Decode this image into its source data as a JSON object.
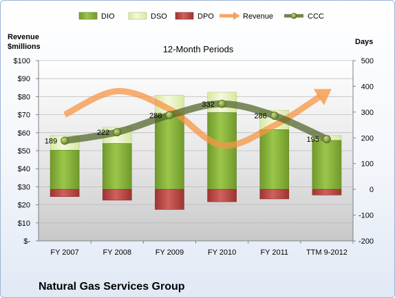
{
  "company": "Natural Gas Services Group",
  "chart_data": {
    "type": "bar",
    "subtitle": "12-Month Periods",
    "left_axis_label_line1": "Revenue",
    "left_axis_label_line2": "$millions",
    "right_axis_label": "Days",
    "categories": [
      "FY 2007",
      "FY 2008",
      "FY 2009",
      "FY 2010",
      "FY 2011",
      "TTM 9-2012"
    ],
    "left_ylim": [
      0,
      100
    ],
    "left_ticks": [
      "$-",
      "$10",
      "$20",
      "$30",
      "$40",
      "$50",
      "$60",
      "$70",
      "$80",
      "$90",
      "$100"
    ],
    "right_ylim": [
      -200,
      500
    ],
    "right_ticks": [
      "-200",
      "-100",
      "0",
      "100",
      "200",
      "300",
      "400",
      "500"
    ],
    "legend_position": "top",
    "series": [
      {
        "name": "DIO",
        "axis": "right",
        "values": [
          152,
          178,
          290,
          298,
          232,
          190
        ],
        "color": "#8bb83c"
      },
      {
        "name": "DSO",
        "axis": "right",
        "values": [
          57,
          63,
          75,
          79,
          75,
          19
        ],
        "color": "#e8f2c4"
      },
      {
        "name": "DPO",
        "axis": "right",
        "values": [
          -28,
          -42,
          -78,
          -48,
          -37,
          -22
        ],
        "color": "#c0504d"
      },
      {
        "name": "Revenue",
        "axis": "left",
        "values": [
          70,
          83,
          73,
          53,
          64,
          82
        ],
        "color": "#f79646"
      },
      {
        "name": "CCC",
        "axis": "right",
        "values": [
          189,
          222,
          288,
          332,
          286,
          195
        ],
        "color": "#4f6228"
      }
    ],
    "ccc_labels": [
      "189",
      "222",
      "288",
      "332",
      "286",
      "195"
    ]
  }
}
